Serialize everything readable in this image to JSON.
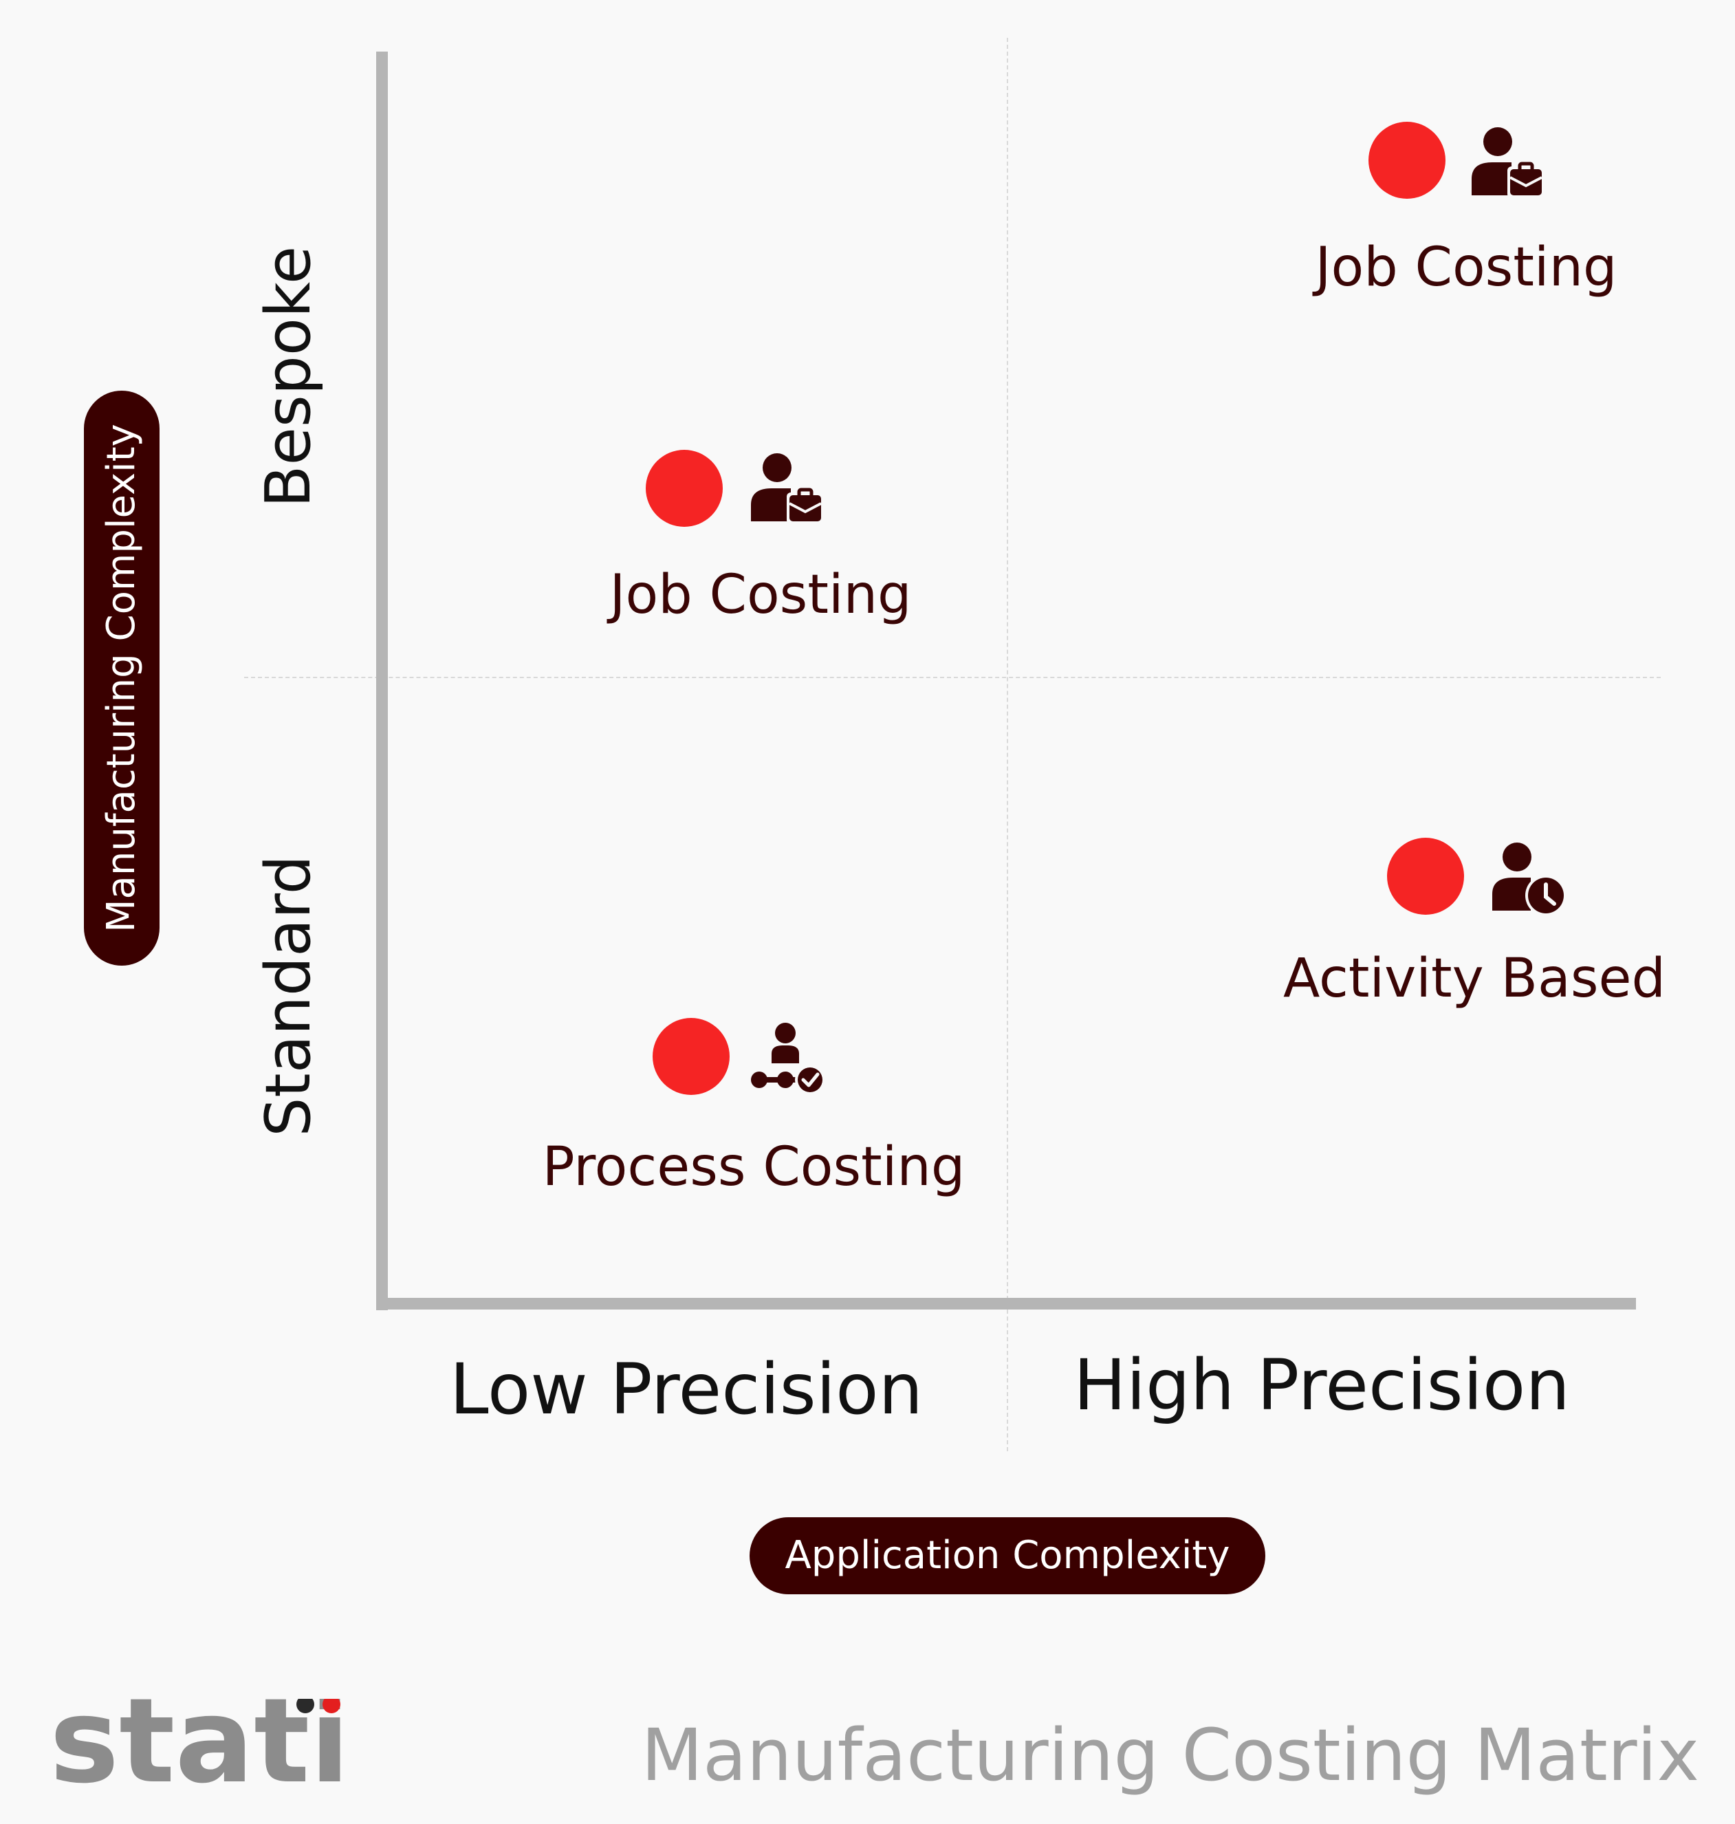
{
  "y_axis": {
    "label": "Manufacturing Complexity",
    "categories": [
      "Bespoke",
      "Standard"
    ]
  },
  "x_axis": {
    "label": "Application Complexity",
    "categories": [
      "Low Precision",
      "High Precision"
    ]
  },
  "items": [
    {
      "label": "Job Costing",
      "x_category": "High Precision",
      "y_category": "Bespoke",
      "icon": "person-briefcase-icon"
    },
    {
      "label": "Job Costing",
      "x_category": "Low Precision",
      "y_category": "Bespoke",
      "icon": "person-briefcase-icon"
    },
    {
      "label": "Activity Based",
      "x_category": "High Precision",
      "y_category": "Standard",
      "icon": "person-clock-icon"
    },
    {
      "label": "Process Costing",
      "x_category": "Low Precision",
      "y_category": "Standard",
      "icon": "person-process-check-icon"
    }
  ],
  "colors": {
    "marker": "#f52424",
    "dark": "#3a0000",
    "axis": "#b5b5b5",
    "footer": "#a0a0a0"
  },
  "footer": {
    "brand": "statii",
    "title": "Manufacturing Costing Matrix"
  }
}
